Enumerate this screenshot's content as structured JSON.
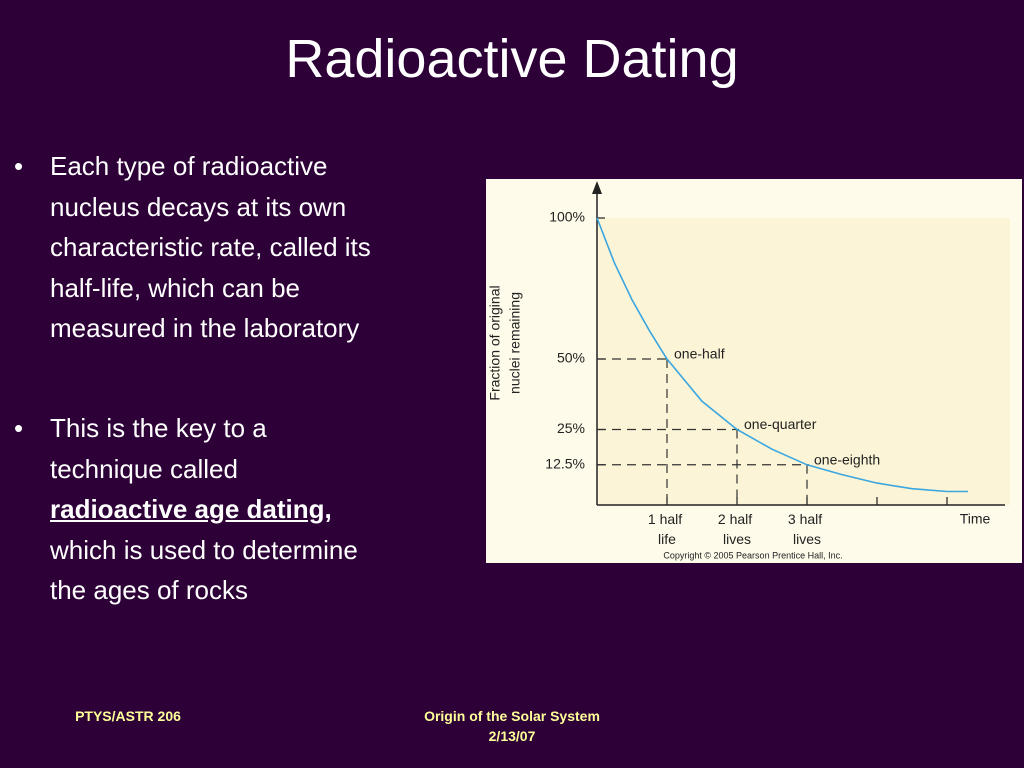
{
  "title": "Radioactive Dating",
  "bullets": [
    {
      "lines": [
        "Each type of radioactive",
        "nucleus decays at its own",
        "characteristic rate, called its",
        "half-life, which can be",
        "measured in the laboratory"
      ]
    },
    {
      "lines": [
        "This is the key to a",
        "technique called"
      ],
      "emphasis": "radioactive age dating,",
      "after": [
        "which is used to determine",
        "the ages of rocks"
      ]
    }
  ],
  "footer": {
    "left": "PTYS/ASTR 206",
    "center": [
      "Origin of the Solar System",
      "2/13/07"
    ]
  },
  "figure": {
    "type": "line",
    "ylabel": [
      "Fraction of original",
      "nuclei remaining"
    ],
    "xlabel": "Time",
    "copyright": "Copyright © 2005 Pearson Prentice Hall, Inc.",
    "xlim": [
      0,
      5.8
    ],
    "ylim": [
      0,
      100
    ],
    "yticks": [
      {
        "value": 100,
        "label": "100%"
      },
      {
        "value": 50,
        "label": "50%"
      },
      {
        "value": 25,
        "label": "25%"
      },
      {
        "value": 12.5,
        "label": "12.5%"
      }
    ],
    "xticks": [
      {
        "value": 1,
        "label": "1 half life"
      },
      {
        "value": 2,
        "label": "2 half lives"
      },
      {
        "value": 3,
        "label": "3 half lives"
      }
    ],
    "minor_xticks": [
      4,
      5
    ],
    "color": "#3aa6e0",
    "curve": {
      "x": [
        0,
        0.25,
        0.5,
        0.75,
        1,
        1.5,
        2,
        2.5,
        3,
        3.5,
        4,
        4.5,
        5,
        5.3
      ],
      "y": [
        100,
        84,
        71,
        60,
        50,
        35,
        25,
        18,
        12.5,
        9,
        6,
        4,
        3,
        3
      ]
    },
    "annotations": [
      {
        "label": "one-half",
        "x": 1,
        "y": 50
      },
      {
        "label": "one-quarter",
        "x": 2,
        "y": 25
      },
      {
        "label": "one-eighth",
        "x": 3,
        "y": 12.5
      }
    ]
  }
}
